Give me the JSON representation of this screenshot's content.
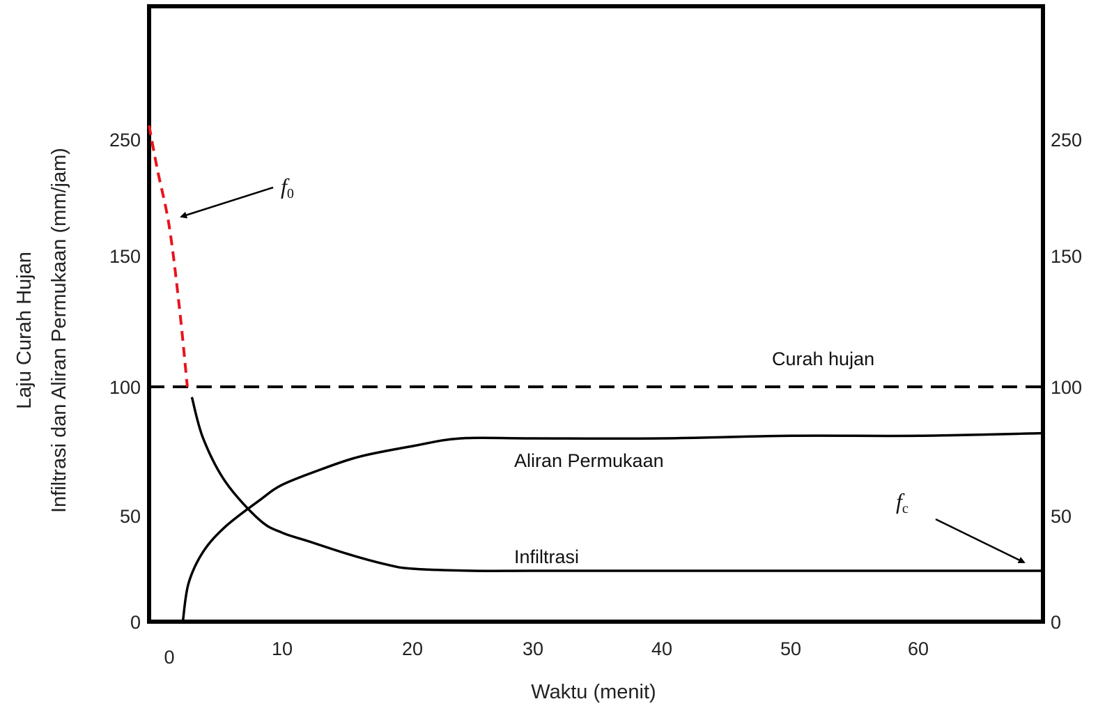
{
  "chart_data": {
    "type": "line",
    "xlabel": "Waktu (menit)",
    "ylabel_lines": [
      "Laju Curah Hujan",
      "Infiltrasi dan Aliran Permukaan (mm/jam)"
    ],
    "x_ticks": [
      0,
      10,
      20,
      30,
      40,
      50,
      60
    ],
    "y_ticks_left": [
      0,
      50,
      100,
      150,
      250
    ],
    "y_ticks_right": [
      0,
      50,
      100,
      150,
      250
    ],
    "xlim": [
      -1.5,
      68
    ],
    "ylim": [
      0,
      300
    ],
    "grid": false,
    "series": [
      {
        "name": "Curah hujan",
        "style": "dashed",
        "color": "#000000",
        "x": [
          -1.5,
          68
        ],
        "y": [
          100,
          100
        ]
      },
      {
        "name": "",
        "style": "dashed",
        "color": "#e8141c",
        "x": [
          -1.5,
          -0.9,
          0,
          0.9,
          1.6
        ],
        "y": [
          260,
          225,
          175,
          130,
          100
        ]
      },
      {
        "name": "Infiltrasi",
        "style": "solid",
        "color": "#000000",
        "x": [
          2,
          3,
          5,
          8,
          10,
          12,
          15,
          18,
          20,
          25,
          30,
          40,
          50,
          60,
          68
        ],
        "y": [
          96,
          80,
          63,
          48,
          42,
          38,
          32,
          27,
          25,
          24,
          24,
          24,
          24,
          24,
          24
        ]
      },
      {
        "name": "Aliran Permukaan",
        "style": "solid",
        "color": "#000000",
        "x": [
          1.2,
          1.7,
          3,
          5,
          8,
          10,
          13,
          16,
          20,
          24,
          30,
          40,
          50,
          60,
          68
        ],
        "y": [
          0,
          18,
          33,
          45,
          56,
          62,
          68,
          73,
          77,
          80,
          80,
          80,
          81,
          81,
          82
        ]
      }
    ],
    "annotations": [
      {
        "text": "f",
        "subscript": "0",
        "x": 10.5,
        "y": 208
      },
      {
        "text": "f",
        "subscript": "c",
        "x": 58.9,
        "y": 53
      }
    ]
  }
}
